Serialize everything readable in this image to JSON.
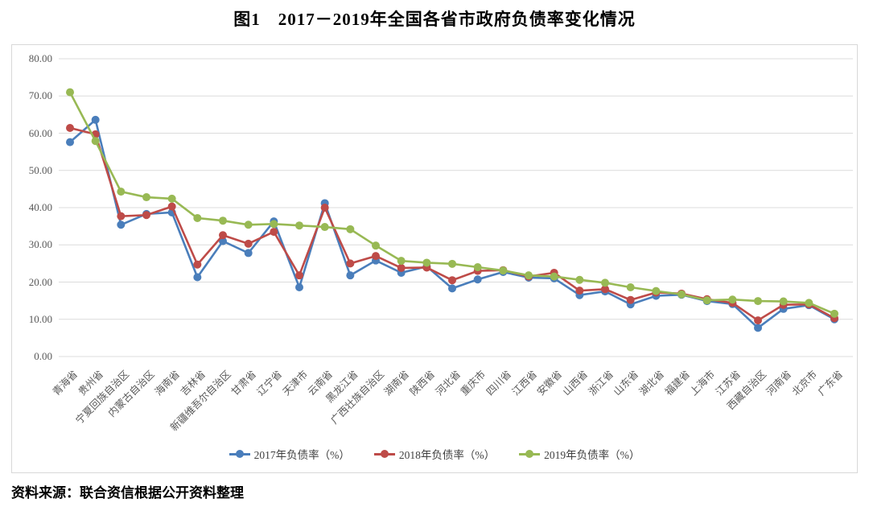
{
  "title": "图1　2017－2019年全国各省市政府负债率变化情况",
  "source": "资料来源：联合资信根据公开资料整理",
  "chart_data": {
    "type": "line",
    "title": "图1　2017－2019年全国各省市政府负债率变化情况",
    "xlabel": "",
    "ylabel": "",
    "ylim": [
      0,
      80
    ],
    "ytick_step": 10,
    "y_ticks": [
      "0.00",
      "10.00",
      "20.00",
      "30.00",
      "40.00",
      "50.00",
      "60.00",
      "70.00",
      "80.00"
    ],
    "grid": true,
    "legend_position": "bottom",
    "marker": "circle",
    "categories": [
      "青海省",
      "贵州省",
      "宁夏回族自治区",
      "内蒙古自治区",
      "海南省",
      "吉林省",
      "新疆维吾尔自治区",
      "甘肃省",
      "辽宁省",
      "天津市",
      "云南省",
      "黑龙江省",
      "广西壮族自治区",
      "湖南省",
      "陕西省",
      "河北省",
      "重庆市",
      "四川省",
      "江西省",
      "安徽省",
      "山西省",
      "浙江省",
      "山东省",
      "湖北省",
      "福建省",
      "上海市",
      "江苏省",
      "西藏自治区",
      "河南省",
      "北京市",
      "广东省"
    ],
    "series": [
      {
        "name": "2017年负债率（%）",
        "color": "#4a7ebb",
        "values": [
          57.6,
          63.6,
          35.4,
          38.3,
          38.7,
          21.3,
          31.0,
          27.8,
          36.3,
          18.6,
          41.2,
          21.8,
          25.8,
          22.5,
          24.2,
          18.3,
          20.7,
          22.7,
          21.2,
          21.0,
          16.5,
          17.5,
          14.0,
          16.3,
          16.6,
          14.9,
          14.1,
          7.7,
          12.8,
          13.8,
          10.0
        ]
      },
      {
        "name": "2018年负债率（%）",
        "color": "#be4b48",
        "values": [
          61.4,
          59.7,
          37.7,
          38.0,
          40.3,
          24.7,
          32.6,
          30.3,
          33.5,
          21.8,
          40.0,
          25.0,
          27.0,
          23.8,
          23.9,
          20.5,
          23.0,
          23.2,
          21.5,
          22.5,
          17.7,
          18.1,
          15.2,
          17.2,
          16.9,
          15.4,
          14.4,
          9.7,
          13.9,
          14.0,
          10.3
        ]
      },
      {
        "name": "2019年负债率（%）",
        "color": "#98b954",
        "values": [
          71.0,
          57.9,
          44.3,
          42.8,
          42.4,
          37.2,
          36.5,
          35.4,
          35.6,
          35.2,
          34.8,
          34.2,
          29.8,
          25.7,
          25.2,
          24.9,
          24.0,
          23.1,
          21.8,
          21.5,
          20.6,
          19.8,
          18.6,
          17.6,
          16.7,
          15.1,
          15.3,
          14.9,
          14.8,
          14.4,
          11.5
        ]
      }
    ],
    "grid_color": "#dcdcdc"
  }
}
